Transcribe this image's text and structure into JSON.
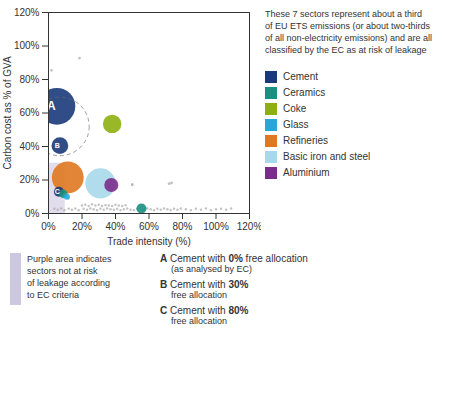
{
  "chart_data": {
    "type": "bubble",
    "xlabel": "Trade intensity (%)",
    "ylabel": "Carbon cost as % of GVA",
    "xlim": [
      0,
      1.2
    ],
    "ylim": [
      0,
      1.2
    ],
    "xticks": [
      {
        "value": 0,
        "label": "0%"
      },
      {
        "value": 0.2,
        "label": "20%"
      },
      {
        "value": 0.4,
        "label": "40%"
      },
      {
        "value": 0.6,
        "label": "60%"
      },
      {
        "value": 0.8,
        "label": "80%"
      },
      {
        "value": 1.0,
        "label": "100%"
      },
      {
        "value": 1.2,
        "label": "120%"
      }
    ],
    "yticks": [
      {
        "value": 0,
        "label": "0%"
      },
      {
        "value": 0.2,
        "label": "20%"
      },
      {
        "value": 0.4,
        "label": "40%"
      },
      {
        "value": 0.6,
        "label": "60%"
      },
      {
        "value": 0.8,
        "label": "80%"
      },
      {
        "value": 1.0,
        "label": "100%"
      },
      {
        "value": 1.2,
        "label": "120%"
      }
    ],
    "region": {
      "x": 0,
      "y": 0,
      "width": 0.1,
      "height": 0.3,
      "color": "#9b8fc0"
    },
    "points": {
      "color": "#aaaaaa",
      "x": [
        0.018,
        0.185,
        0.035,
        0.055,
        0.075,
        0.095,
        0.12,
        0.14,
        0.16,
        0.18,
        0.21,
        0.23,
        0.25,
        0.27,
        0.29,
        0.31,
        0.33,
        0.35,
        0.37,
        0.39,
        0.41,
        0.43,
        0.45,
        0.47,
        0.49,
        0.51,
        0.53,
        0.57,
        0.59,
        0.61,
        0.63,
        0.65,
        0.67,
        0.69,
        0.71,
        0.73,
        0.75,
        0.77,
        0.79,
        0.82,
        0.85,
        0.88,
        0.91,
        0.94,
        0.97,
        1.0,
        1.03,
        1.06,
        1.09,
        0.2,
        0.22,
        0.24,
        0.26,
        0.28,
        0.3,
        0.32,
        0.34,
        0.36,
        0.38,
        0.4,
        0.42,
        0.44,
        0.46,
        0.5,
        0.72,
        0.735,
        0.5
      ],
      "y": [
        0.855,
        0.928,
        0.028,
        0.022,
        0.03,
        0.02,
        0.028,
        0.022,
        0.03,
        0.02,
        0.028,
        0.022,
        0.03,
        0.025,
        0.02,
        0.028,
        0.022,
        0.03,
        0.025,
        0.022,
        0.028,
        0.02,
        0.025,
        0.03,
        0.022,
        0.02,
        0.028,
        0.022,
        0.03,
        0.025,
        0.02,
        0.028,
        0.022,
        0.03,
        0.025,
        0.02,
        0.028,
        0.022,
        0.03,
        0.025,
        0.02,
        0.028,
        0.022,
        0.03,
        0.02,
        0.025,
        0.028,
        0.022,
        0.03,
        0.048,
        0.052,
        0.045,
        0.055,
        0.048,
        0.052,
        0.045,
        0.05,
        0.048,
        0.045,
        0.052,
        0.048,
        0.045,
        0.05,
        0.175,
        0.178,
        0.182,
        0.17
      ],
      "size": [
        4,
        4,
        3,
        3,
        3,
        3,
        3,
        3,
        3,
        3,
        3,
        3,
        3,
        3,
        3,
        3,
        3,
        3,
        3,
        3,
        3,
        3,
        3,
        3,
        3,
        3,
        3,
        3,
        3,
        3,
        3,
        3,
        3,
        3,
        3,
        3,
        3,
        3,
        3,
        3,
        3,
        3,
        3,
        3,
        3,
        3,
        3,
        3,
        3,
        3,
        3,
        3,
        3,
        3,
        3,
        3,
        3,
        3,
        3,
        3,
        3,
        3,
        3,
        3,
        4,
        4,
        3
      ]
    },
    "circle": {
      "x": 0.068,
      "y": 0.52,
      "radius": 0.175,
      "color": "#666666",
      "line_style": "dashed"
    },
    "bubbles": [
      {
        "x": 0.05,
        "y": 0.64,
        "radius": 0.11,
        "color": "#1a3a7a",
        "label": "A"
      },
      {
        "x": 0.068,
        "y": 0.405,
        "radius": 0.05,
        "color": "#1a3a7a",
        "label": "B"
      },
      {
        "x": 0.062,
        "y": 0.13,
        "radius": 0.03,
        "color": "#1a3a7a",
        "label": "C"
      },
      {
        "x": 0.38,
        "y": 0.535,
        "radius": 0.055,
        "color": "#8db010"
      },
      {
        "x": 0.115,
        "y": 0.215,
        "radius": 0.095,
        "color": "#e07820"
      },
      {
        "x": 0.31,
        "y": 0.18,
        "radius": 0.09,
        "color": "#a8d8ea"
      },
      {
        "x": 0.375,
        "y": 0.17,
        "radius": 0.042,
        "color": "#7b2d8b"
      },
      {
        "x": 0.088,
        "y": 0.118,
        "radius": 0.025,
        "color": "#1a9080"
      },
      {
        "x": 0.555,
        "y": 0.03,
        "radius": 0.03,
        "color": "#1a9080"
      },
      {
        "x": 0.11,
        "y": 0.1,
        "radius": 0.018,
        "color": "#29a8d8"
      }
    ],
    "legend_entries": [
      {
        "name": "Cement",
        "color": "#1a3a7a"
      },
      {
        "name": "Ceramics",
        "color": "#1a9080"
      },
      {
        "name": "Coke",
        "color": "#8db010"
      },
      {
        "name": "Glass",
        "color": "#29a8d8"
      },
      {
        "name": "Refineries",
        "color": "#e07820"
      },
      {
        "name": "Basic iron and steel",
        "color": "#a8d8ea"
      },
      {
        "name": "Aluminium",
        "color": "#7b2d8b"
      }
    ],
    "annotation": "These 7 sectors represent about a third\nof EU ETS emissions (or about two-thirds\nof all non-electricity emissions) and are all\nclassified by the EC as at risk of leakage",
    "region_note": "Purple area indicates\nsectors not at risk\nof leakage according\nto EC criteria",
    "notes": [
      {
        "label": "A",
        "text": "Cement with ",
        "emphasis": "0%",
        "after": " free allocation",
        "detail": "(as analysed by EC)"
      },
      {
        "label": "B",
        "text": "Cement with ",
        "emphasis": "30%",
        "detail": "free allocation"
      },
      {
        "label": "C",
        "text": "Cement with ",
        "emphasis": "80%",
        "detail": "free allocation"
      }
    ]
  }
}
